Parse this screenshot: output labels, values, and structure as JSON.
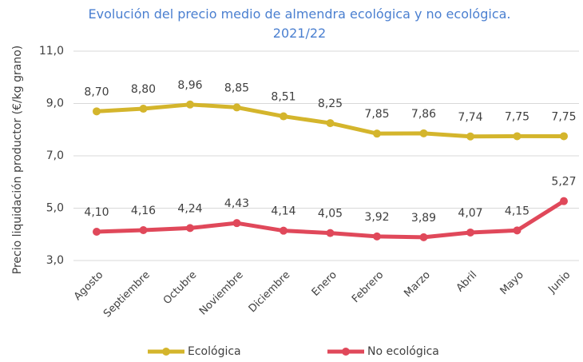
{
  "chart_data": {
    "type": "line",
    "title": "Evolución del precio medio de almendra ecológica y no ecológica. 2021/22",
    "y_label": "Precio liquidación productor (€/kg grano)",
    "categories": [
      "Agosto",
      "Septiembre",
      "Octubre",
      "Noviembre",
      "Diciembre",
      "Enero",
      "Febrero",
      "Marzo",
      "Abril",
      "Mayo",
      "Junio"
    ],
    "series": [
      {
        "name": "Ecológica",
        "color": "#d4b52c",
        "values": [
          8.7,
          8.8,
          8.96,
          8.85,
          8.51,
          8.25,
          7.85,
          7.86,
          7.74,
          7.75,
          7.75
        ],
        "value_labels": [
          "8,70",
          "8,80",
          "8,96",
          "8,85",
          "8,51",
          "8,25",
          "7,85",
          "7,86",
          "7,74",
          "7,75",
          "7,75"
        ]
      },
      {
        "name": "No ecológica",
        "color": "#e0485a",
        "values": [
          4.1,
          4.16,
          4.24,
          4.43,
          4.14,
          4.05,
          3.92,
          3.89,
          4.07,
          4.15,
          5.27
        ],
        "value_labels": [
          "4,10",
          "4,16",
          "4,24",
          "4,43",
          "4,14",
          "4,05",
          "3,92",
          "3,89",
          "4,07",
          "4,15",
          "5,27"
        ]
      }
    ],
    "ylim": [
      3,
      11
    ],
    "yticks": [
      {
        "value": 3,
        "label": "3,0"
      },
      {
        "value": 5,
        "label": "5,0"
      },
      {
        "value": 7,
        "label": "7,0"
      },
      {
        "value": 9,
        "label": "9,0"
      },
      {
        "value": 11,
        "label": "11,0"
      }
    ],
    "grid": true,
    "legend": "bottom"
  }
}
